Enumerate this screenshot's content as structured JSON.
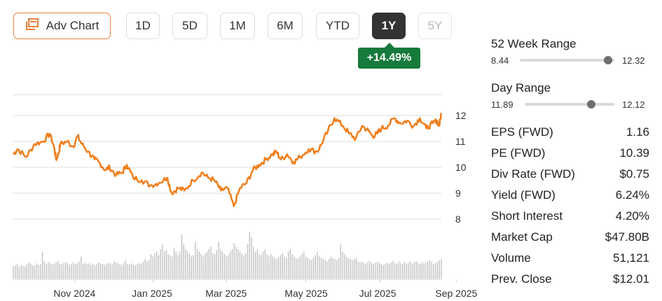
{
  "toolbar": {
    "adv_chart_label": "Adv Chart",
    "periods": [
      {
        "label": "1D",
        "state": "normal"
      },
      {
        "label": "5D",
        "state": "normal"
      },
      {
        "label": "1M",
        "state": "normal"
      },
      {
        "label": "6M",
        "state": "normal"
      },
      {
        "label": "YTD",
        "state": "normal"
      },
      {
        "label": "1Y",
        "state": "active"
      },
      {
        "label": "5Y",
        "state": "disabled"
      }
    ]
  },
  "change_badge": "+14.49%",
  "colors": {
    "accent": "#e8803a",
    "line": "#f07e1b",
    "positive": "#167a3c",
    "volume": "#bdbdbd",
    "active_tab": "#333333"
  },
  "chart_data": {
    "type": "line",
    "title": "",
    "ylabel": "",
    "xlabel": "",
    "ylim": [
      7.8,
      12.6
    ],
    "y_ticks": [
      12,
      11,
      10,
      9,
      8
    ],
    "x_tick_labels": [
      "Nov 2024",
      "Jan 2025",
      "Mar 2025",
      "May 2025",
      "Jul 2025",
      "Sep 2025"
    ],
    "x_tick_positions": [
      0.143,
      0.326,
      0.498,
      0.683,
      0.857,
      1.035
    ],
    "grid": true,
    "legend": "none",
    "price_series": {
      "name": "",
      "t": [
        0,
        0.01,
        0.03,
        0.05,
        0.07,
        0.085,
        0.095,
        0.1,
        0.105,
        0.11,
        0.125,
        0.14,
        0.15,
        0.16,
        0.175,
        0.19,
        0.2,
        0.215,
        0.225,
        0.24,
        0.255,
        0.265,
        0.28,
        0.3,
        0.32,
        0.34,
        0.36,
        0.37,
        0.385,
        0.4,
        0.42,
        0.44,
        0.455,
        0.47,
        0.485,
        0.5,
        0.515,
        0.53,
        0.545,
        0.56,
        0.575,
        0.59,
        0.605,
        0.615,
        0.625,
        0.64,
        0.655,
        0.67,
        0.69,
        0.71,
        0.72,
        0.735,
        0.75,
        0.77,
        0.785,
        0.8,
        0.815,
        0.83,
        0.84,
        0.85,
        0.86,
        0.875,
        0.89,
        0.905,
        0.92,
        0.935,
        0.95,
        0.965,
        0.98,
        0.99,
        0.995,
        1.0
      ],
      "y": [
        10.5,
        10.7,
        10.4,
        10.9,
        11.0,
        11.3,
        10.8,
        10.3,
        10.5,
        10.9,
        11.0,
        10.8,
        11.2,
        10.9,
        10.6,
        10.3,
        10.2,
        9.9,
        10.0,
        9.7,
        9.8,
        10.1,
        9.6,
        9.5,
        9.3,
        9.4,
        9.6,
        9.0,
        9.2,
        9.1,
        9.5,
        9.8,
        9.6,
        9.5,
        9.1,
        9.2,
        8.5,
        9.2,
        9.4,
        9.9,
        10.1,
        10.3,
        10.5,
        10.6,
        10.3,
        10.5,
        10.2,
        10.4,
        10.7,
        10.6,
        10.9,
        11.4,
        11.9,
        11.6,
        11.3,
        11.1,
        11.6,
        11.4,
        11.2,
        11.3,
        11.5,
        11.6,
        11.9,
        11.7,
        11.8,
        11.6,
        11.9,
        11.5,
        11.7,
        11.8,
        11.6,
        12.1
      ]
    },
    "volume_series": {
      "name": "",
      "relative_values": [
        0.25,
        0.27,
        0.3,
        0.24,
        0.28,
        0.26,
        0.25,
        0.29,
        0.33,
        0.3,
        0.27,
        0.26,
        0.31,
        0.28,
        0.3,
        0.55,
        0.35,
        0.3,
        0.34,
        0.32,
        0.29,
        0.3,
        0.33,
        0.36,
        0.3,
        0.29,
        0.32,
        0.34,
        0.31,
        0.28,
        0.3,
        0.33,
        0.29,
        0.31,
        0.35,
        0.45,
        0.3,
        0.32,
        0.29,
        0.31,
        0.28,
        0.3,
        0.27,
        0.29,
        0.33,
        0.31,
        0.3,
        0.28,
        0.3,
        0.32,
        0.31,
        0.29,
        0.35,
        0.33,
        0.31,
        0.3,
        0.28,
        0.32,
        0.36,
        0.3,
        0.29,
        0.31,
        0.28,
        0.27,
        0.3,
        0.32,
        0.3,
        0.35,
        0.4,
        0.36,
        0.38,
        0.5,
        0.45,
        0.52,
        0.55,
        0.48,
        0.6,
        0.7,
        0.55,
        0.58,
        0.5,
        0.47,
        0.45,
        0.62,
        0.55,
        0.48,
        0.55,
        0.9,
        0.7,
        0.6,
        0.55,
        0.5,
        0.45,
        0.48,
        0.75,
        0.6,
        0.55,
        0.5,
        0.45,
        0.5,
        0.55,
        0.6,
        0.65,
        0.52,
        0.5,
        0.58,
        0.75,
        0.6,
        0.55,
        0.5,
        0.45,
        0.48,
        0.55,
        0.6,
        0.72,
        0.65,
        0.6,
        0.55,
        0.5,
        0.47,
        0.52,
        0.7,
        0.95,
        0.85,
        0.65,
        0.55,
        0.6,
        0.5,
        0.48,
        0.55,
        0.6,
        0.5,
        0.45,
        0.5,
        0.45,
        0.42,
        0.4,
        0.45,
        0.48,
        0.52,
        0.45,
        0.42,
        0.55,
        0.6,
        0.5,
        0.45,
        0.42,
        0.4,
        0.45,
        0.5,
        0.55,
        0.45,
        0.42,
        0.4,
        0.38,
        0.42,
        0.48,
        0.55,
        0.45,
        0.42,
        0.4,
        0.38,
        0.35,
        0.4,
        0.45,
        0.42,
        0.4,
        0.38,
        0.42,
        0.7,
        0.55,
        0.5,
        0.45,
        0.42,
        0.4,
        0.38,
        0.4,
        0.42,
        0.35,
        0.33,
        0.35,
        0.32,
        0.3,
        0.34,
        0.36,
        0.32,
        0.3,
        0.33,
        0.35,
        0.32,
        0.3,
        0.28,
        0.3,
        0.32,
        0.3,
        0.33,
        0.36,
        0.32,
        0.3,
        0.35,
        0.32,
        0.3,
        0.34,
        0.3,
        0.32,
        0.35,
        0.3,
        0.33,
        0.36,
        0.32,
        0.3,
        0.34,
        0.31,
        0.33,
        0.35,
        0.38,
        0.34,
        0.3,
        0.32,
        0.35,
        0.37,
        0.4
      ]
    }
  },
  "sidebar": {
    "week52": {
      "label": "52 Week Range",
      "min": "8.44",
      "max": "12.32",
      "position": 0.93
    },
    "day_range": {
      "label": "Day Range",
      "min": "11.89",
      "max": "12.12",
      "position": 0.74
    },
    "stats": [
      {
        "label": "EPS (FWD)",
        "value": "1.16"
      },
      {
        "label": "PE (FWD)",
        "value": "10.39"
      },
      {
        "label": "Div Rate (FWD)",
        "value": "$0.75"
      },
      {
        "label": "Yield (FWD)",
        "value": "6.24%"
      },
      {
        "label": "Short Interest",
        "value": "4.20%"
      },
      {
        "label": "Market Cap",
        "value": "$47.80B"
      },
      {
        "label": "Volume",
        "value": "51,121"
      },
      {
        "label": "Prev. Close",
        "value": "$12.01"
      }
    ]
  }
}
